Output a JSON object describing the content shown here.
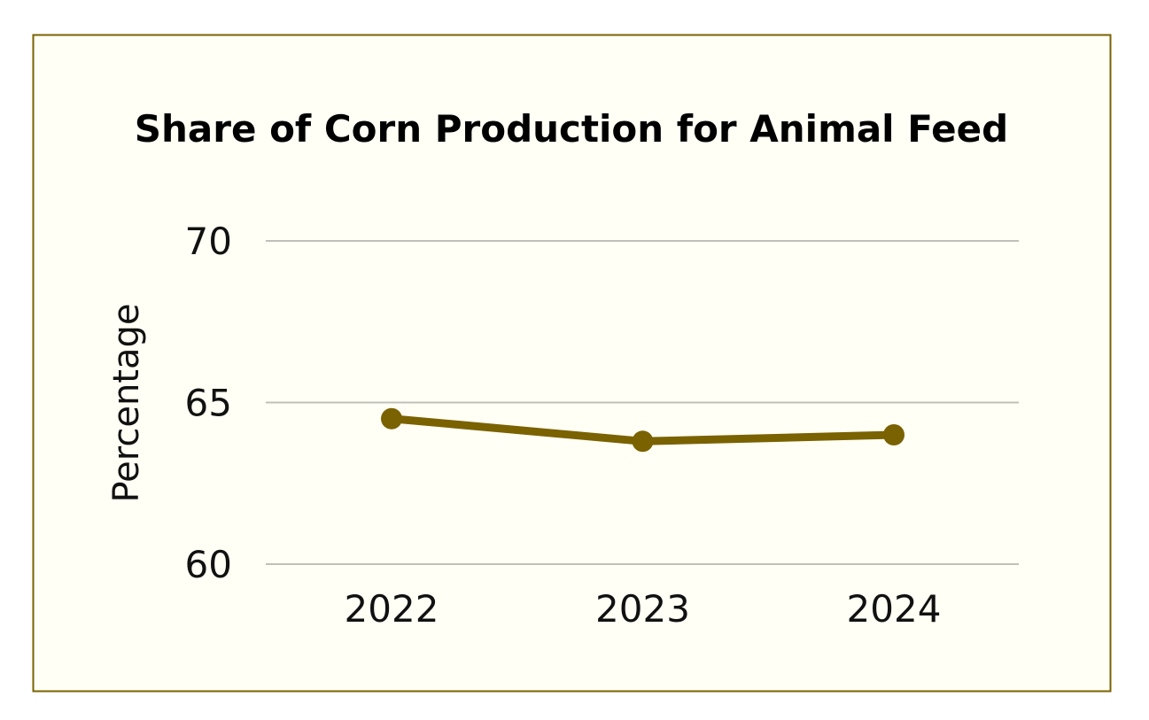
{
  "chart_data": {
    "type": "line",
    "title": "Share of Corn Production for Animal Feed",
    "xlabel": "",
    "ylabel": "Percentage",
    "categories": [
      "2022",
      "2023",
      "2024"
    ],
    "series": [
      {
        "values": [
          64.5,
          63.8,
          64.0
        ]
      }
    ],
    "ylim": [
      60,
      70
    ],
    "yticks": [
      "60",
      "65",
      "70"
    ],
    "grid": true,
    "legend": "none",
    "colors": {
      "line": "#7a6200",
      "grid": "#c0c0b8",
      "background": "#fffff5",
      "frame": "#7a6200"
    }
  }
}
